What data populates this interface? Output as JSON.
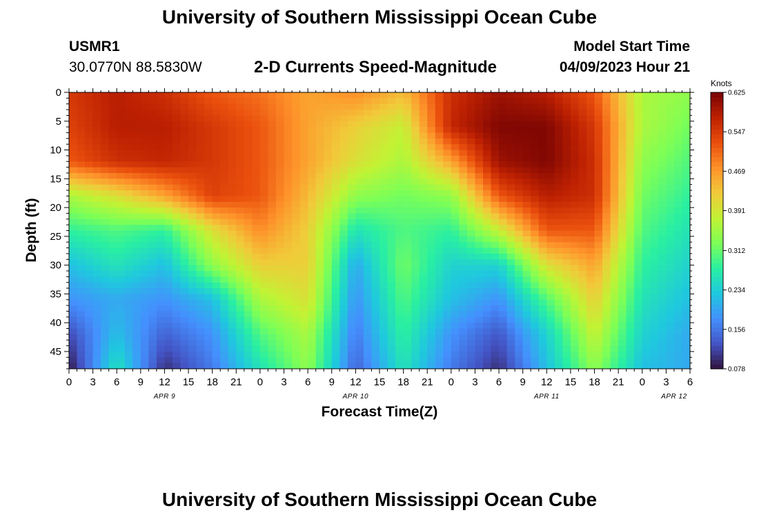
{
  "header": {
    "title": "University of Southern Mississippi Ocean Cube",
    "station": "USMR1",
    "coords": "30.0770N  88.5830W",
    "subtitle": "2-D Currents Speed-Magnitude",
    "model_label": "Model Start Time",
    "model_time": "04/09/2023 Hour 21"
  },
  "footer": {
    "title": "University of Southern Mississippi Ocean Cube"
  },
  "chart_data": {
    "type": "heatmap",
    "title": "2-D Currents Speed-Magnitude",
    "xlabel": "Forecast Time(Z)",
    "ylabel": "Depth (ft)",
    "x_unit": "hours from APR 9 00Z",
    "xlim": [
      0,
      78
    ],
    "ylim": [
      48,
      0
    ],
    "x_tick_values": [
      0,
      3,
      6,
      9,
      12,
      15,
      18,
      21,
      24,
      27,
      30,
      33,
      36,
      39,
      42,
      45,
      48,
      51,
      54,
      57,
      60,
      63,
      66,
      69,
      72,
      75,
      78
    ],
    "x_tick_labels": [
      "0",
      "3",
      "6",
      "9",
      "12",
      "15",
      "18",
      "21",
      "0",
      "3",
      "6",
      "9",
      "12",
      "15",
      "18",
      "21",
      "0",
      "3",
      "6",
      "9",
      "12",
      "15",
      "18",
      "21",
      "0",
      "3",
      "6"
    ],
    "y_ticks": [
      0,
      5,
      10,
      15,
      20,
      25,
      30,
      35,
      40,
      45
    ],
    "day_labels": [
      {
        "hour": 12,
        "label": "APR 9"
      },
      {
        "hour": 36,
        "label": "APR 10"
      },
      {
        "hour": 60,
        "label": "APR 11"
      },
      {
        "hour": 76,
        "label": "APR 12"
      }
    ],
    "colorbar": {
      "title": "Knots",
      "ticks": [
        0.078,
        0.156,
        0.234,
        0.312,
        0.391,
        0.469,
        0.547,
        0.625
      ],
      "tick_labels": [
        "0.078",
        "0.156",
        "0.234",
        "0.312",
        "0.391",
        "0.469",
        "0.547",
        "0.625"
      ],
      "range": [
        0.078,
        0.625
      ],
      "colors": [
        "#30123b",
        "#4454c4",
        "#4490fe",
        "#1fc8de",
        "#29efa2",
        "#7dff56",
        "#c1f334",
        "#f1ca3a",
        "#fe922a",
        "#ea4f0d",
        "#be2102",
        "#7a0403"
      ]
    },
    "grid": {
      "x_hours": [
        0,
        6,
        12,
        18,
        24,
        30,
        36,
        42,
        48,
        54,
        60,
        66,
        72,
        78
      ],
      "depths_ft": [
        0,
        6,
        12,
        18,
        24,
        30,
        36,
        42,
        48
      ],
      "speed_knots": [
        [
          0.55,
          0.58,
          0.56,
          0.52,
          0.5,
          0.46,
          0.48,
          0.44,
          0.56,
          0.6,
          0.58,
          0.52,
          0.36,
          0.34
        ],
        [
          0.54,
          0.58,
          0.58,
          0.55,
          0.52,
          0.46,
          0.42,
          0.38,
          0.57,
          0.62,
          0.62,
          0.55,
          0.36,
          0.32
        ],
        [
          0.52,
          0.56,
          0.57,
          0.55,
          0.52,
          0.46,
          0.4,
          0.36,
          0.46,
          0.6,
          0.62,
          0.56,
          0.34,
          0.3
        ],
        [
          0.36,
          0.4,
          0.46,
          0.54,
          0.52,
          0.44,
          0.34,
          0.32,
          0.34,
          0.52,
          0.58,
          0.56,
          0.32,
          0.28
        ],
        [
          0.28,
          0.3,
          0.28,
          0.4,
          0.48,
          0.42,
          0.26,
          0.3,
          0.28,
          0.38,
          0.52,
          0.52,
          0.3,
          0.26
        ],
        [
          0.22,
          0.26,
          0.22,
          0.34,
          0.42,
          0.42,
          0.2,
          0.32,
          0.24,
          0.24,
          0.4,
          0.46,
          0.28,
          0.24
        ],
        [
          0.18,
          0.2,
          0.18,
          0.22,
          0.36,
          0.4,
          0.18,
          0.3,
          0.22,
          0.18,
          0.3,
          0.42,
          0.26,
          0.22
        ],
        [
          0.12,
          0.22,
          0.14,
          0.18,
          0.3,
          0.36,
          0.16,
          0.28,
          0.18,
          0.13,
          0.24,
          0.38,
          0.24,
          0.2
        ],
        [
          0.08,
          0.26,
          0.1,
          0.16,
          0.26,
          0.34,
          0.14,
          0.26,
          0.16,
          0.1,
          0.22,
          0.34,
          0.22,
          0.2
        ]
      ]
    }
  }
}
